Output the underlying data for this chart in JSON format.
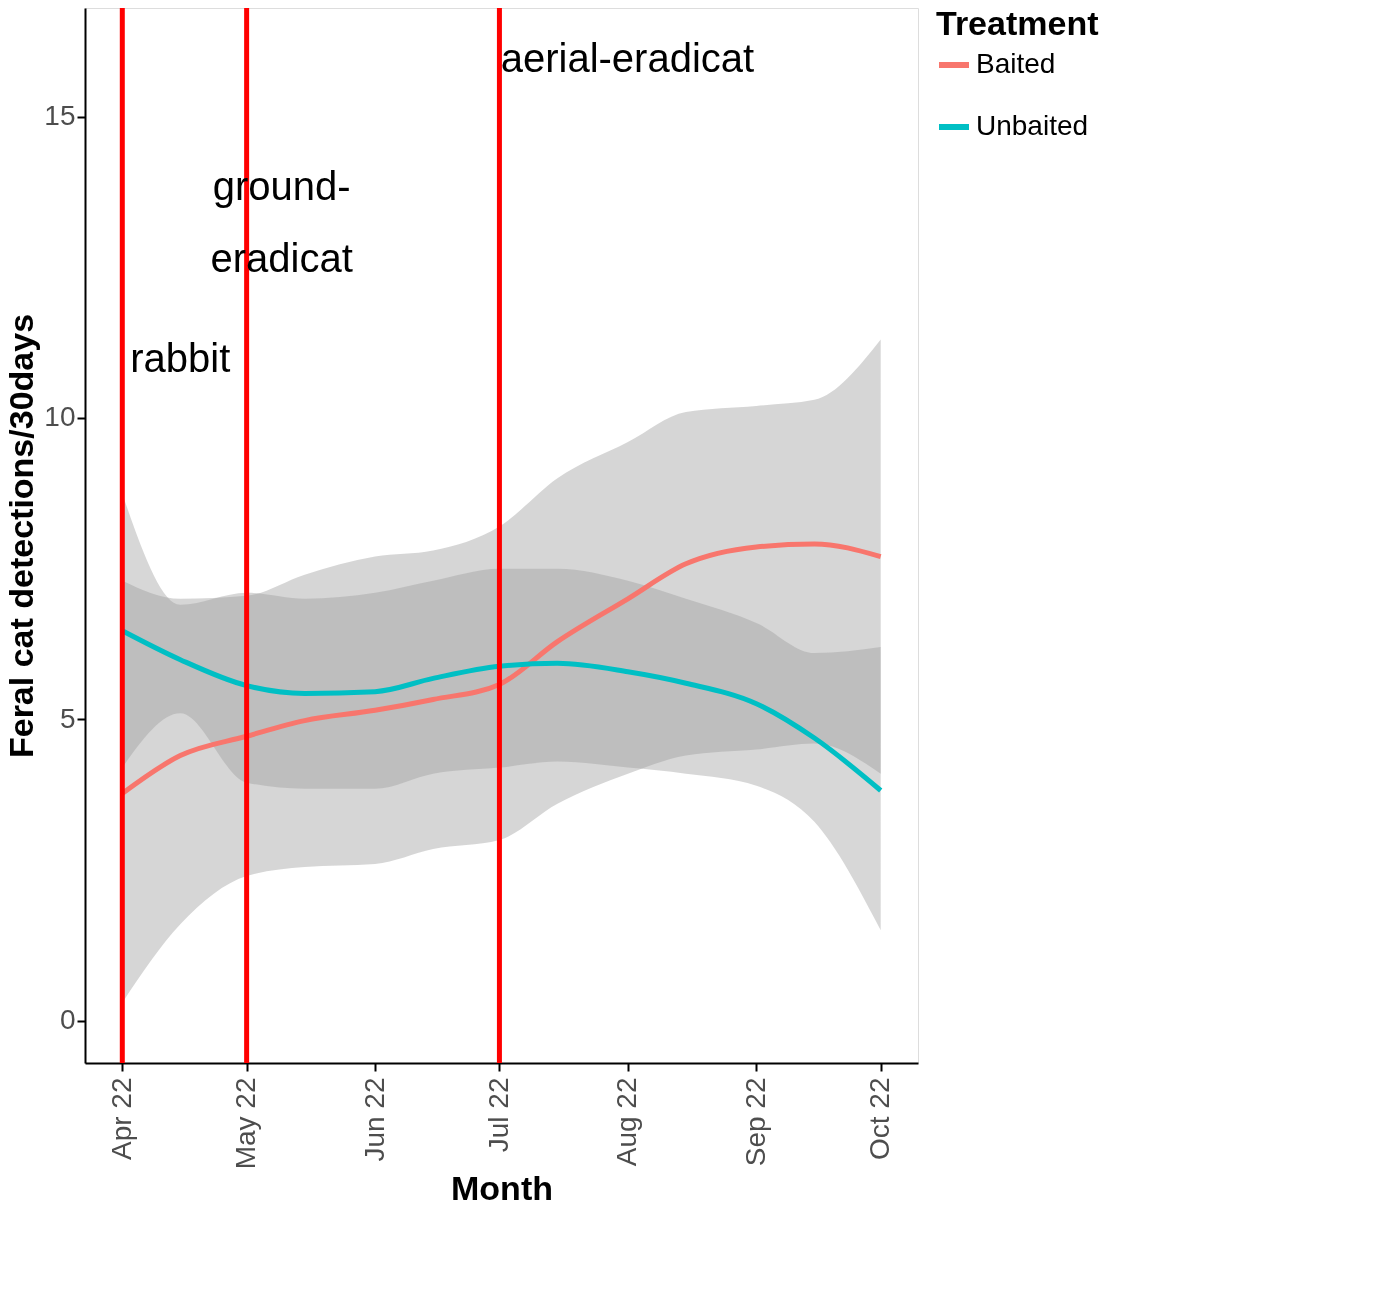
{
  "chart_data": {
    "type": "line",
    "xlabel": "Month",
    "ylabel": "Feral cat detections/30days",
    "legend_title": "Treatment",
    "legend": "right",
    "grid": false,
    "marker": "none",
    "line_style": "solid",
    "x": [
      "2022-04-01",
      "2022-04-15",
      "2022-05-01",
      "2022-05-15",
      "2022-06-01",
      "2022-06-15",
      "2022-07-01",
      "2022-07-15",
      "2022-08-01",
      "2022-08-15",
      "2022-09-01",
      "2022-09-15",
      "2022-10-01"
    ],
    "series": [
      {
        "name": "Baited",
        "color": "#f8766d",
        "values": [
          3.77,
          4.4,
          4.72,
          4.98,
          5.15,
          5.33,
          5.58,
          6.29,
          7.0,
          7.58,
          7.86,
          7.91,
          7.7
        ],
        "lower": [
          0.3,
          1.6,
          2.4,
          2.55,
          2.6,
          2.85,
          3.0,
          3.6,
          4.1,
          4.4,
          4.5,
          4.6,
          4.1
        ],
        "upper": [
          7.3,
          7.0,
          7.05,
          7.4,
          7.7,
          7.8,
          8.2,
          9.0,
          9.6,
          10.1,
          10.2,
          10.3,
          11.3
        ]
      },
      {
        "name": "Unbaited",
        "color": "#00bfc4",
        "values": [
          6.47,
          5.99,
          5.56,
          5.43,
          5.46,
          5.68,
          5.88,
          5.93,
          5.79,
          5.6,
          5.26,
          4.69,
          3.82
        ],
        "lower": [
          4.2,
          5.1,
          3.95,
          3.85,
          3.85,
          4.1,
          4.2,
          4.3,
          4.2,
          4.1,
          3.9,
          3.3,
          1.5
        ],
        "upper": [
          8.74,
          6.9,
          7.1,
          7.0,
          7.1,
          7.3,
          7.5,
          7.5,
          7.3,
          7.0,
          6.6,
          6.1,
          6.2
        ]
      }
    ],
    "xlim": [
      "2022-03-23",
      "2022-10-10"
    ],
    "xticks": [
      {
        "value": "2022-04-01",
        "label": "Apr 22"
      },
      {
        "value": "2022-05-01",
        "label": "May 22"
      },
      {
        "value": "2022-06-01",
        "label": "Jun 22"
      },
      {
        "value": "2022-07-01",
        "label": "Jul 22"
      },
      {
        "value": "2022-08-01",
        "label": "Aug 22"
      },
      {
        "value": "2022-09-01",
        "label": "Sep 22"
      },
      {
        "value": "2022-10-01",
        "label": "Oct 22"
      }
    ],
    "ylim": [
      -0.7,
      16.8
    ],
    "yticks": [
      0,
      5,
      10,
      15
    ],
    "ref_lines": [
      {
        "axis": "x",
        "value": "2022-04-01",
        "color": "#ff0000",
        "label": "rabbit"
      },
      {
        "axis": "x",
        "value": "2022-05-01",
        "color": "#ff0000",
        "label": "ground-\neradicat"
      },
      {
        "axis": "x",
        "value": "2022-07-01",
        "color": "#ff0000",
        "label": "aerial-eradicat"
      }
    ]
  }
}
